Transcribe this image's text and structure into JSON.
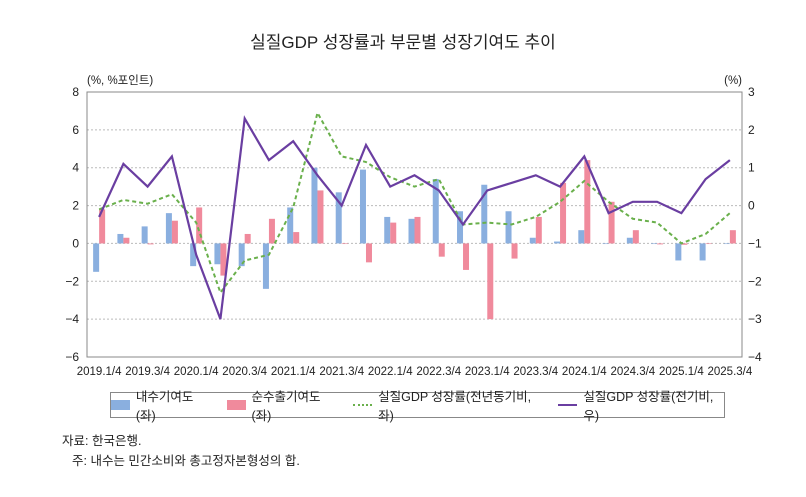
{
  "chart_data": {
    "type": "bar+line",
    "title": "실질GDP 성장률과 부문별 성장기여도 추이",
    "ylabel_left": "(%, %포인트)",
    "ylabel_right": "(%)",
    "ylim_left": [
      -6,
      8
    ],
    "yticks_left": [
      -6,
      -4,
      -2,
      0,
      2,
      4,
      6,
      8
    ],
    "ylim_right": [
      -4,
      3
    ],
    "yticks_right": [
      -4,
      -3,
      -2,
      -1,
      0,
      1,
      2,
      3
    ],
    "grid": "horizontal dotted",
    "legend_placement": "bottom",
    "categories": [
      "2019.1/4",
      "2019.2/4",
      "2019.3/4",
      "2019.4/4",
      "2020.1/4",
      "2020.2/4",
      "2020.3/4",
      "2020.4/4",
      "2021.1/4",
      "2021.2/4",
      "2021.3/4",
      "2021.4/4",
      "2022.1/4",
      "2022.2/4",
      "2022.3/4",
      "2022.4/4",
      "2023.1/4",
      "2023.2/4",
      "2023.3/4",
      "2023.4/4",
      "2024.1/4",
      "2024.2/4",
      "2024.3/4",
      "2024.4/4",
      "2025.1/4",
      "2025.2/4",
      "2025.3/4"
    ],
    "tick_labels": [
      "2019.1/4",
      "2019.3/4",
      "2020.1/4",
      "2020.3/4",
      "2021.1/4",
      "2021.3/4",
      "2022.1/4",
      "2022.3/4",
      "2023.1/4",
      "2023.3/4",
      "2024.1/4",
      "2024.3/4",
      "2025.1/4",
      "2025.3/4"
    ],
    "series": [
      {
        "name": "내수기여도(좌)",
        "type": "bar",
        "axis": "left",
        "color": "#8aafdf",
        "values": [
          -1.5,
          0.5,
          0.9,
          1.6,
          -1.2,
          -1.1,
          -1.2,
          -2.4,
          1.9,
          4.0,
          2.7,
          3.9,
          1.4,
          1.3,
          3.4,
          1.7,
          3.1,
          1.7,
          0.3,
          0.1,
          0.7,
          0.0,
          0.3,
          0.0,
          -0.9,
          -0.9,
          -0.03
        ]
      },
      {
        "name": "순수출기여도(좌)",
        "type": "bar",
        "axis": "left",
        "color": "#f08a9c",
        "values": [
          1.8,
          0.3,
          -0.05,
          1.2,
          1.9,
          -1.7,
          0.5,
          1.3,
          0.6,
          2.8,
          0.0,
          -1.0,
          1.1,
          1.4,
          -0.7,
          -1.4,
          -4.0,
          -0.8,
          1.4,
          3.2,
          4.4,
          2.2,
          0.7,
          -0.05,
          -0.07,
          -0.03,
          0.7
        ]
      },
      {
        "name": "실질GDP 성장률(전년동기비, 좌)",
        "type": "line",
        "style": "dashed",
        "axis": "left",
        "color": "#6ab04c",
        "values": [
          1.8,
          2.3,
          2.1,
          2.6,
          1.1,
          -2.6,
          -0.9,
          -0.6,
          1.9,
          6.9,
          4.6,
          4.3,
          3.5,
          3.0,
          3.4,
          1.0,
          1.1,
          1.0,
          1.4,
          2.2,
          3.3,
          2.2,
          1.3,
          1.1,
          0.0,
          0.5,
          1.6
        ]
      },
      {
        "name": "실질GDP 성장률(전기비, 우)",
        "type": "line",
        "style": "solid",
        "axis": "right",
        "color": "#6a3ea1",
        "values": [
          -0.3,
          1.1,
          0.5,
          1.3,
          -1.3,
          -3.0,
          2.3,
          1.2,
          1.7,
          0.8,
          0.0,
          1.6,
          0.5,
          0.8,
          0.4,
          -0.5,
          0.4,
          0.6,
          0.8,
          0.5,
          1.3,
          -0.2,
          0.1,
          0.1,
          -0.2,
          0.7,
          1.2
        ]
      }
    ]
  },
  "notes": {
    "source": "자료: 한국은행.",
    "footnote": "주: 내수는 민간소비와 총고정자본형성의 합."
  }
}
